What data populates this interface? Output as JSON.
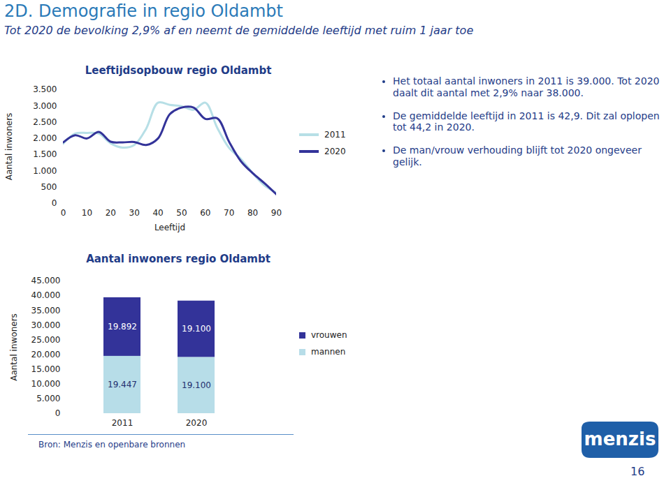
{
  "header": {
    "title": "2D. Demografie in regio Oldambt",
    "subtitle": "Tot 2020 de bevolking 2,9% af en neemt de gemiddelde leeftijd met ruim 1 jaar toe"
  },
  "chart_data": [
    {
      "type": "line",
      "title": "Leeftijdsopbouw regio Oldambt",
      "xlabel": "Leeftijd",
      "ylabel": "Aantal inwoners",
      "x": [
        0,
        5,
        10,
        15,
        20,
        25,
        30,
        35,
        40,
        45,
        50,
        55,
        60,
        65,
        70,
        75,
        80,
        85,
        90
      ],
      "series": [
        {
          "name": "2011",
          "color": "#b7dfe6",
          "values": [
            1840,
            2150,
            2170,
            2150,
            1850,
            1720,
            1800,
            2300,
            3100,
            3035,
            2990,
            2880,
            3100,
            2330,
            1710,
            1370,
            930,
            550,
            330
          ]
        },
        {
          "name": "2020",
          "color": "#333399",
          "values": [
            1880,
            2100,
            2000,
            2200,
            1900,
            1880,
            1890,
            1800,
            2000,
            2750,
            2950,
            2950,
            2600,
            2620,
            1900,
            1300,
            930,
            620,
            280
          ]
        }
      ],
      "xlim": [
        0,
        90
      ],
      "xticks": [
        0,
        10,
        20,
        30,
        40,
        50,
        60,
        70,
        80,
        90
      ],
      "ylim": [
        0,
        3500
      ],
      "yticks": [
        0,
        500,
        {
          "value": 1000,
          "label": "1.000"
        },
        {
          "value": 1500,
          "label": "1.500"
        },
        {
          "value": 2000,
          "label": "2.000"
        },
        {
          "value": 2500,
          "label": "2.500"
        },
        {
          "value": 3000,
          "label": "3.000"
        },
        {
          "value": 3500,
          "label": "3.500"
        }
      ],
      "grid": false,
      "legend": "right"
    },
    {
      "type": "bar",
      "title": "Aantal inwoners regio Oldambt",
      "ylabel": "Aantal inwoners",
      "categories": [
        "2011",
        "2020"
      ],
      "series": [
        {
          "name": "vrouwen",
          "color": "#333399",
          "values": [
            19892,
            19100
          ],
          "value_labels": [
            "19.892",
            "19.100"
          ]
        },
        {
          "name": "mannen",
          "color": "#b7dde8",
          "values": [
            19447,
            19100
          ],
          "value_labels": [
            "19.447",
            "19.100"
          ]
        }
      ],
      "stacked": true,
      "data_labels": true,
      "ylim": [
        0,
        45000
      ],
      "yticks": [
        0,
        {
          "value": 5000,
          "label": "5.000"
        },
        {
          "value": 10000,
          "label": "10.000"
        },
        {
          "value": 15000,
          "label": "15.000"
        },
        {
          "value": 20000,
          "label": "20.000"
        },
        {
          "value": 25000,
          "label": "25.000"
        },
        {
          "value": 30000,
          "label": "30.000"
        },
        {
          "value": 35000,
          "label": "35.000"
        },
        {
          "value": 40000,
          "label": "40.000"
        },
        {
          "value": 45000,
          "label": "45.000"
        }
      ],
      "grid": false,
      "legend": "right"
    }
  ],
  "bullets": [
    "Het totaal aantal inwoners in 2011 is 39.000. Tot 2020 daalt dit aantal met 2,9% naar 38.000.",
    "De gemiddelde leeftijd in 2011 is 42,9. Dit zal oplopen tot 44,2 in 2020.",
    "De man/vrouw verhouding blijft tot 2020 ongeveer gelijk."
  ],
  "source": "Bron: Menzis en openbare bronnen",
  "logo": "menzis",
  "page_number": "16"
}
